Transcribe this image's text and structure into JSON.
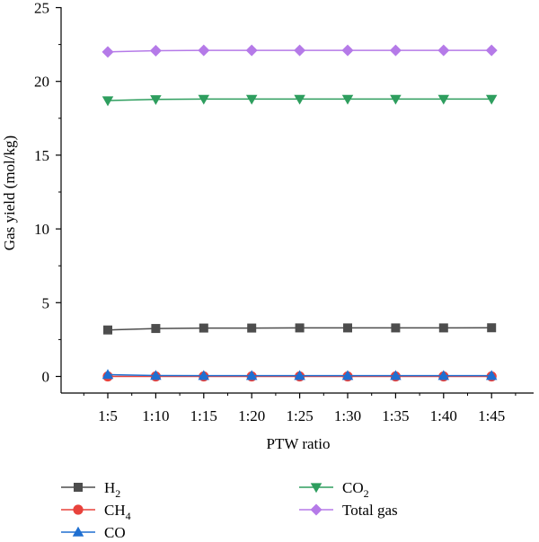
{
  "chart_data": {
    "type": "line",
    "title": "",
    "xlabel": "PTW ratio",
    "ylabel": "Gas yield (mol/kg)",
    "categories": [
      "1:5",
      "1:10",
      "1:15",
      "1:20",
      "1:25",
      "1:30",
      "1:35",
      "1:40",
      "1:45"
    ],
    "ylim": [
      0,
      25
    ],
    "yticks": [
      0,
      5,
      10,
      15,
      20,
      25
    ],
    "grid": false,
    "legend_placement": "bottom",
    "series": [
      {
        "name": "H",
        "sub": "2",
        "marker": "square",
        "color": "#4d4d4d",
        "values": [
          3.15,
          3.25,
          3.28,
          3.28,
          3.29,
          3.29,
          3.29,
          3.29,
          3.3
        ]
      },
      {
        "name": "CH",
        "sub": "4",
        "marker": "circle",
        "color": "#e8423c",
        "values": [
          0.0,
          0.0,
          0.0,
          0.0,
          0.0,
          0.0,
          0.0,
          0.0,
          0.0
        ]
      },
      {
        "name": "CO",
        "sub": "",
        "marker": "triangle-up",
        "color": "#1f6fd1",
        "values": [
          0.12,
          0.06,
          0.05,
          0.05,
          0.05,
          0.05,
          0.05,
          0.05,
          0.05
        ]
      },
      {
        "name": "CO",
        "sub": "2",
        "marker": "triangle-down",
        "color": "#2e9e5e",
        "values": [
          18.7,
          18.78,
          18.8,
          18.8,
          18.8,
          18.8,
          18.8,
          18.8,
          18.8
        ]
      },
      {
        "name": "Total gas",
        "sub": "",
        "marker": "diamond",
        "color": "#b57ae8",
        "values": [
          22.0,
          22.08,
          22.1,
          22.1,
          22.1,
          22.1,
          22.1,
          22.1,
          22.1
        ]
      }
    ]
  }
}
